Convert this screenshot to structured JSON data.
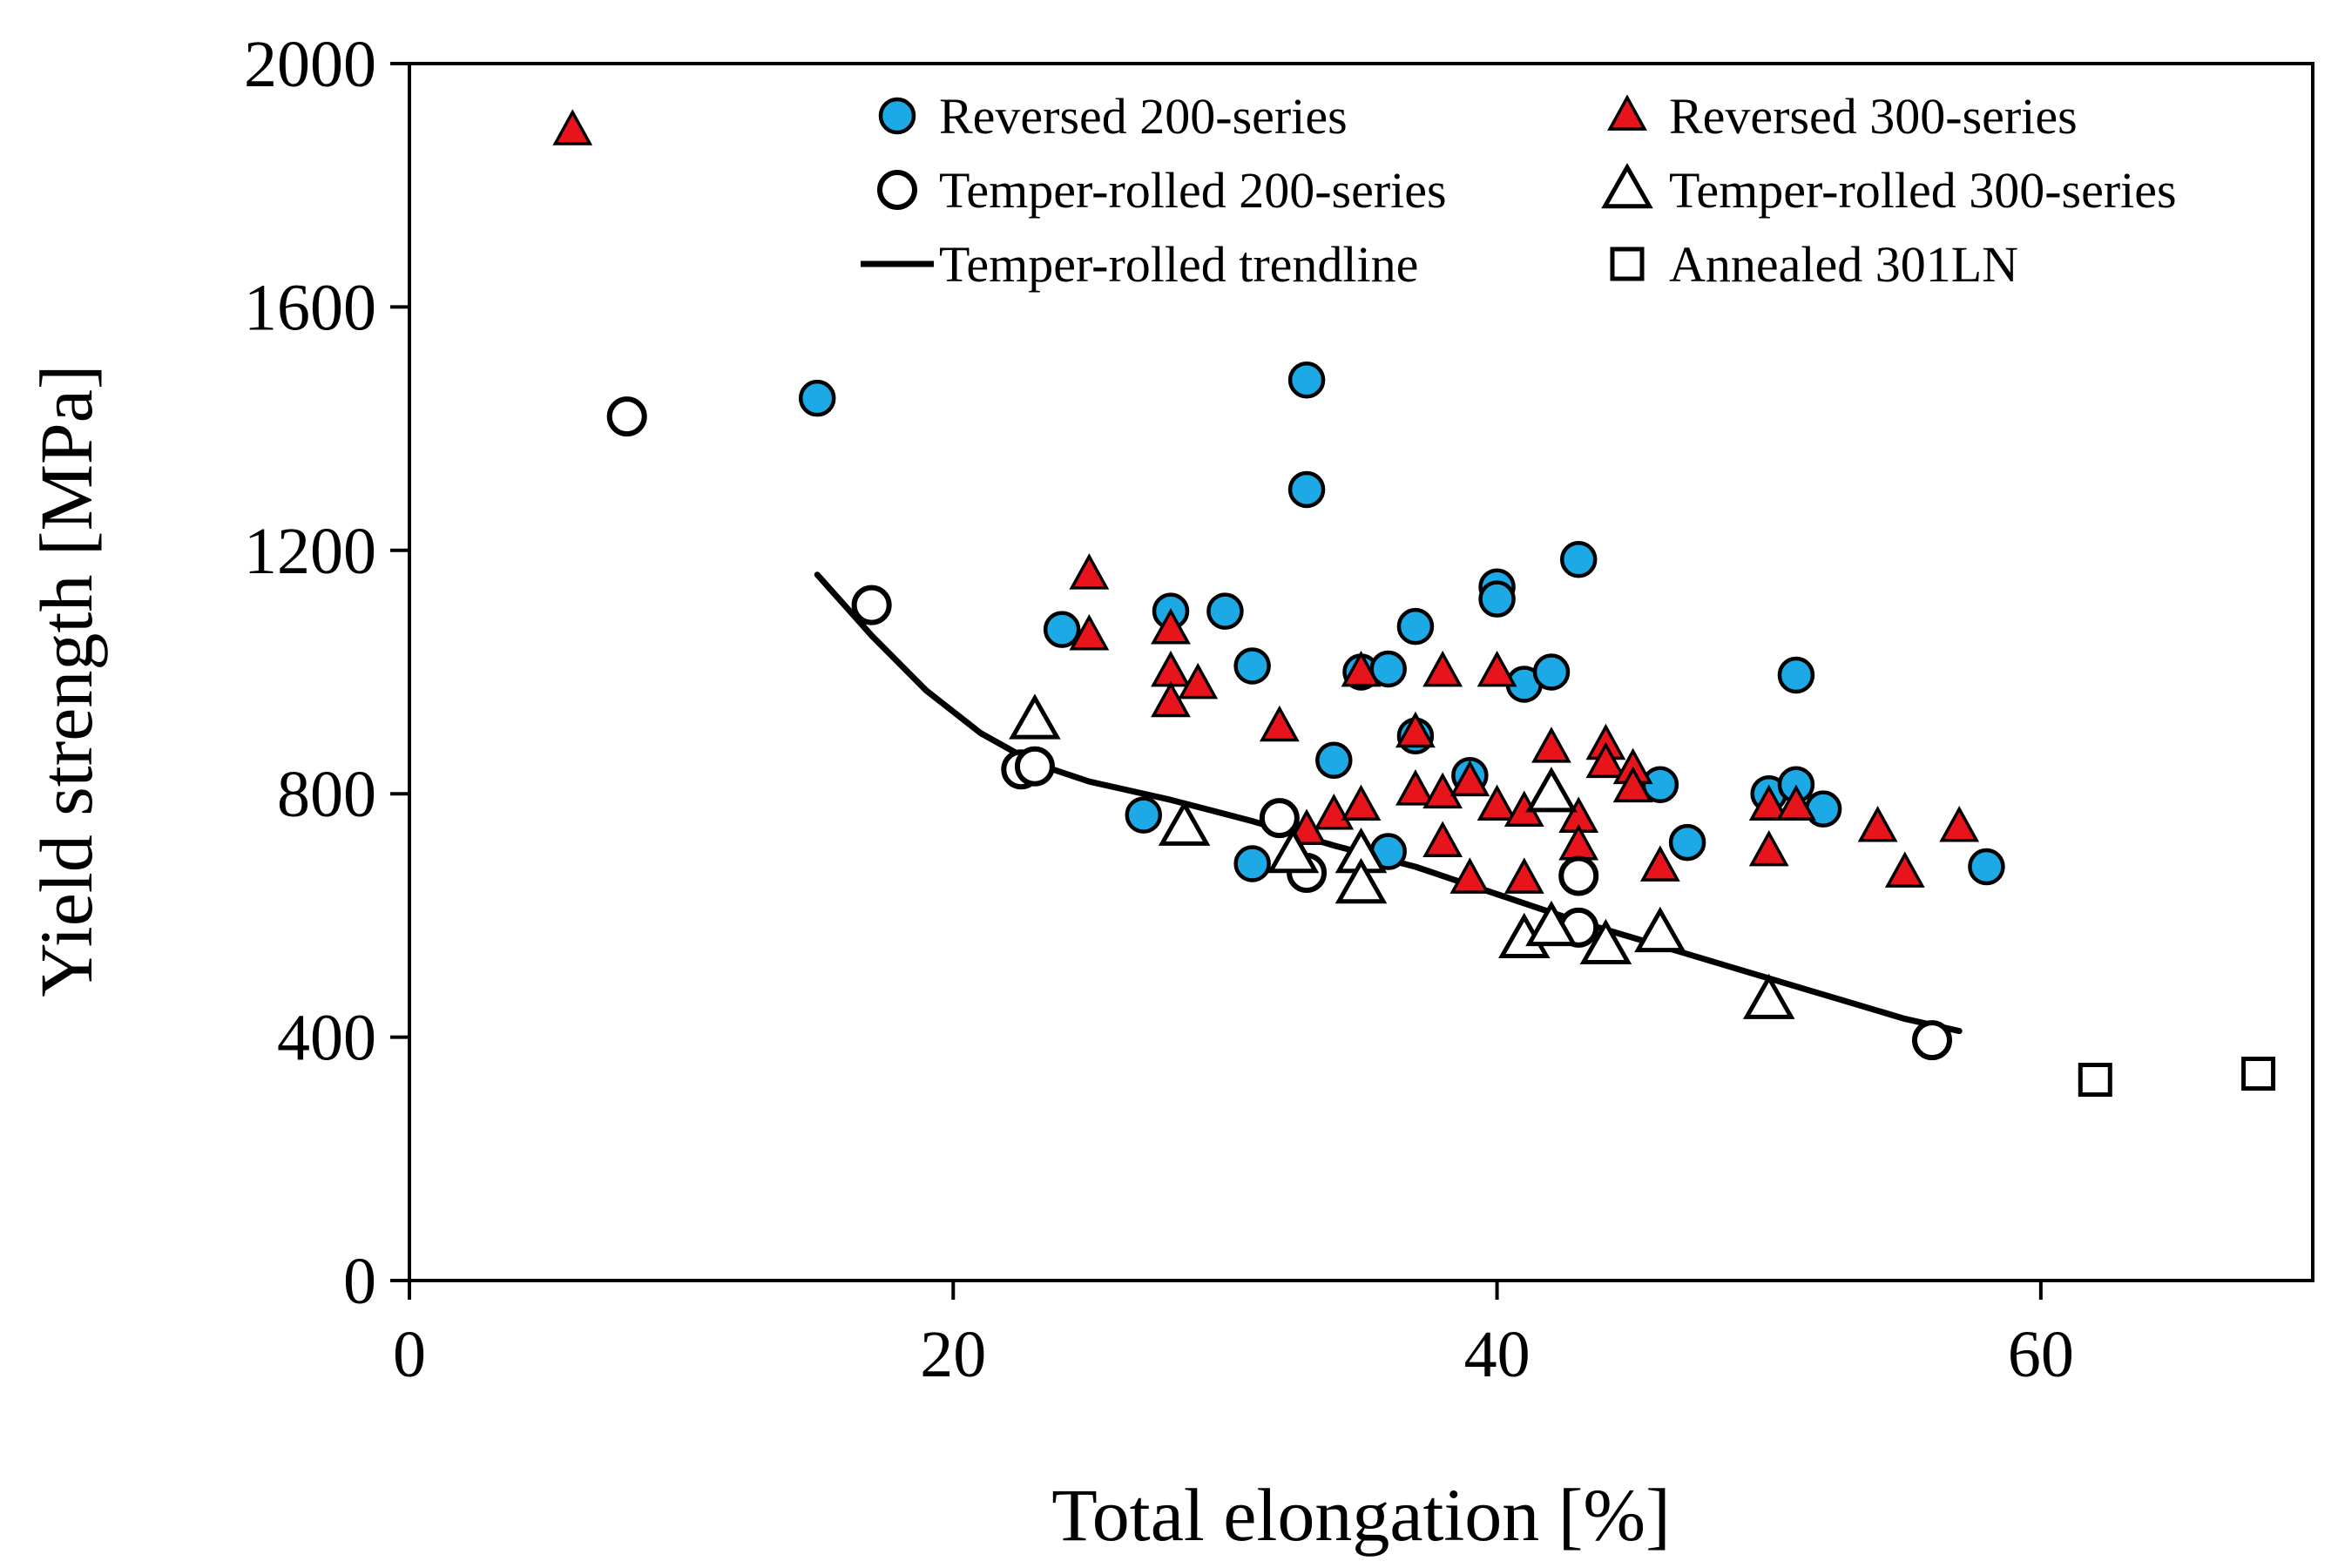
{
  "chart_data": {
    "type": "scatter",
    "title": "",
    "xlabel": "Total elongation [%]",
    "ylabel": "Yield strength [MPa]",
    "xlim": [
      0,
      70
    ],
    "ylim": [
      0,
      2000
    ],
    "xticks": [
      0,
      20,
      40,
      60
    ],
    "yticks": [
      0,
      400,
      800,
      1200,
      1600,
      2000
    ],
    "x_tick_labels": [
      "0",
      "20",
      "40",
      "60"
    ],
    "y_tick_labels": [
      "0",
      "400",
      "800",
      "1200",
      "1600",
      "2000"
    ],
    "grid": false,
    "legend_position": "top-right",
    "series": [
      {
        "name": "Reversed 200-series",
        "marker": "circle",
        "color": "#1CA9E6",
        "points": [
          [
            15,
            1450
          ],
          [
            33,
            1480
          ],
          [
            33,
            1300
          ],
          [
            24,
            1070
          ],
          [
            28,
            1100
          ],
          [
            30,
            1100
          ],
          [
            31,
            1010
          ],
          [
            35,
            1000
          ],
          [
            36,
            1005
          ],
          [
            37,
            1075
          ],
          [
            40,
            1140
          ],
          [
            40,
            1120
          ],
          [
            43,
            1185
          ],
          [
            41,
            980
          ],
          [
            42,
            1000
          ],
          [
            37,
            895
          ],
          [
            34,
            855
          ],
          [
            39,
            830
          ],
          [
            27,
            765
          ],
          [
            31,
            685
          ],
          [
            36,
            705
          ],
          [
            46,
            815
          ],
          [
            47,
            720
          ],
          [
            50,
            800
          ],
          [
            51,
            815
          ],
          [
            52,
            775
          ],
          [
            51,
            995
          ],
          [
            58,
            680
          ]
        ]
      },
      {
        "name": "Reversed 300-series",
        "marker": "triangle",
        "color": "#E8141C",
        "points": [
          [
            6,
            1890
          ],
          [
            25,
            1160
          ],
          [
            25,
            1060
          ],
          [
            28,
            1070
          ],
          [
            28,
            1000
          ],
          [
            29,
            980
          ],
          [
            28,
            950
          ],
          [
            32,
            910
          ],
          [
            35,
            1000
          ],
          [
            38,
            1000
          ],
          [
            40,
            1000
          ],
          [
            37,
            900
          ],
          [
            37,
            805
          ],
          [
            38,
            800
          ],
          [
            39,
            820
          ],
          [
            34,
            765
          ],
          [
            35,
            780
          ],
          [
            33,
            740
          ],
          [
            38,
            720
          ],
          [
            39,
            660
          ],
          [
            40,
            780
          ],
          [
            41,
            770
          ],
          [
            41,
            660
          ],
          [
            42,
            875
          ],
          [
            43,
            760
          ],
          [
            43,
            715
          ],
          [
            44,
            880
          ],
          [
            44,
            850
          ],
          [
            45,
            840
          ],
          [
            45,
            810
          ],
          [
            46,
            680
          ],
          [
            50,
            780
          ],
          [
            50,
            705
          ],
          [
            51,
            780
          ],
          [
            54,
            745
          ],
          [
            55,
            670
          ],
          [
            57,
            745
          ]
        ]
      },
      {
        "name": "Temper-rolled 200-series",
        "marker": "circle-open",
        "color": "#ffffff",
        "points": [
          [
            8,
            1420
          ],
          [
            17,
            1110
          ],
          [
            22.5,
            840
          ],
          [
            23,
            845
          ],
          [
            32,
            760
          ],
          [
            33,
            670
          ],
          [
            43,
            665
          ],
          [
            43,
            580
          ],
          [
            56,
            395
          ]
        ]
      },
      {
        "name": "Temper-rolled 300-series",
        "marker": "triangle-open",
        "color": "#ffffff",
        "points": [
          [
            23,
            920
          ],
          [
            28.5,
            745
          ],
          [
            32.5,
            700
          ],
          [
            35,
            700
          ],
          [
            35,
            650
          ],
          [
            41,
            560
          ],
          [
            42,
            580
          ],
          [
            42,
            800
          ],
          [
            44,
            550
          ],
          [
            46,
            570
          ],
          [
            50,
            460
          ]
        ]
      },
      {
        "name": "Annealed 301LN",
        "marker": "square-open",
        "color": "#ffffff",
        "points": [
          [
            62,
            330
          ],
          [
            68,
            340
          ]
        ]
      }
    ],
    "trendline": {
      "name": "Temper-rolled trendline",
      "color": "#000000",
      "x": [
        15,
        17,
        19,
        21,
        23,
        25,
        28,
        31,
        34,
        37,
        40,
        43,
        46,
        49,
        52,
        55,
        57
      ],
      "y": [
        1160,
        1060,
        970,
        900,
        850,
        820,
        790,
        755,
        715,
        680,
        635,
        590,
        550,
        510,
        470,
        430,
        410
      ]
    }
  }
}
